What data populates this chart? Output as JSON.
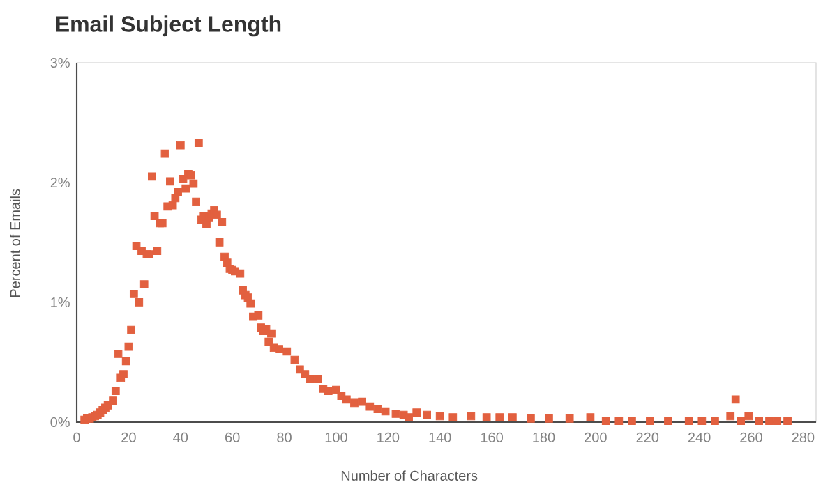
{
  "chart_data": {
    "type": "scatter",
    "title": "Email Subject Length",
    "xlabel": "Number of Characters",
    "ylabel": "Percent of Emails",
    "xlim": [
      0,
      285
    ],
    "ylim": [
      0,
      3
    ],
    "xticks": [
      0,
      20,
      40,
      60,
      80,
      100,
      120,
      140,
      160,
      180,
      200,
      220,
      240,
      260,
      280
    ],
    "yticks": [
      {
        "value": 0,
        "label": "0%"
      },
      {
        "value": 1,
        "label": "1%"
      },
      {
        "value": 2,
        "label": "2%"
      },
      {
        "value": 3,
        "label": "3%"
      }
    ],
    "marker": "square",
    "series": [
      {
        "color": "#e2603f",
        "x": [
          3,
          4,
          5,
          6,
          7,
          8,
          9,
          10,
          11,
          12,
          14,
          15,
          16,
          17,
          18,
          19,
          20,
          21,
          22,
          23,
          24,
          25,
          26,
          27,
          28,
          29,
          30,
          31,
          32,
          33,
          34,
          35,
          36,
          37,
          38,
          39,
          40,
          41,
          42,
          43,
          44,
          45,
          46,
          47,
          48,
          49,
          50,
          51,
          52,
          53,
          54,
          55,
          56,
          57,
          58,
          59,
          60,
          61,
          63,
          64,
          65,
          66,
          67,
          68,
          70,
          71,
          72,
          73,
          74,
          75,
          76,
          78,
          81,
          84,
          86,
          88,
          90,
          93,
          95,
          97,
          100,
          102,
          104,
          107,
          110,
          113,
          116,
          119,
          123,
          126,
          128,
          131,
          135,
          140,
          145,
          152,
          158,
          163,
          168,
          175,
          182,
          190,
          198,
          204,
          209,
          214,
          221,
          228,
          236,
          241,
          246,
          252,
          254,
          256,
          259,
          263,
          267,
          270,
          274
        ],
        "values": [
          0.02,
          0.03,
          0.03,
          0.04,
          0.05,
          0.06,
          0.08,
          0.1,
          0.12,
          0.14,
          0.18,
          0.26,
          0.57,
          0.37,
          0.4,
          0.51,
          0.63,
          0.77,
          1.07,
          1.47,
          1.0,
          1.43,
          1.15,
          1.4,
          1.4,
          2.05,
          1.72,
          1.43,
          1.66,
          1.66,
          2.24,
          1.8,
          2.01,
          1.81,
          1.87,
          1.92,
          2.31,
          2.03,
          1.95,
          2.07,
          2.06,
          1.99,
          1.84,
          2.33,
          1.69,
          1.72,
          1.65,
          1.71,
          1.74,
          1.77,
          1.73,
          1.5,
          1.67,
          1.38,
          1.33,
          1.28,
          1.27,
          1.26,
          1.24,
          1.1,
          1.06,
          1.04,
          0.99,
          0.88,
          0.89,
          0.79,
          0.76,
          0.78,
          0.67,
          0.74,
          0.62,
          0.61,
          0.59,
          0.52,
          0.44,
          0.4,
          0.36,
          0.36,
          0.28,
          0.26,
          0.27,
          0.22,
          0.19,
          0.16,
          0.17,
          0.13,
          0.11,
          0.09,
          0.07,
          0.06,
          0.04,
          0.08,
          0.06,
          0.05,
          0.04,
          0.05,
          0.04,
          0.04,
          0.04,
          0.03,
          0.03,
          0.03,
          0.04,
          0.01,
          0.01,
          0.01,
          0.01,
          0.01,
          0.01,
          0.01,
          0.01,
          0.05,
          0.19,
          0.01,
          0.05,
          0.01,
          0.01,
          0.01,
          0.01
        ]
      }
    ]
  }
}
